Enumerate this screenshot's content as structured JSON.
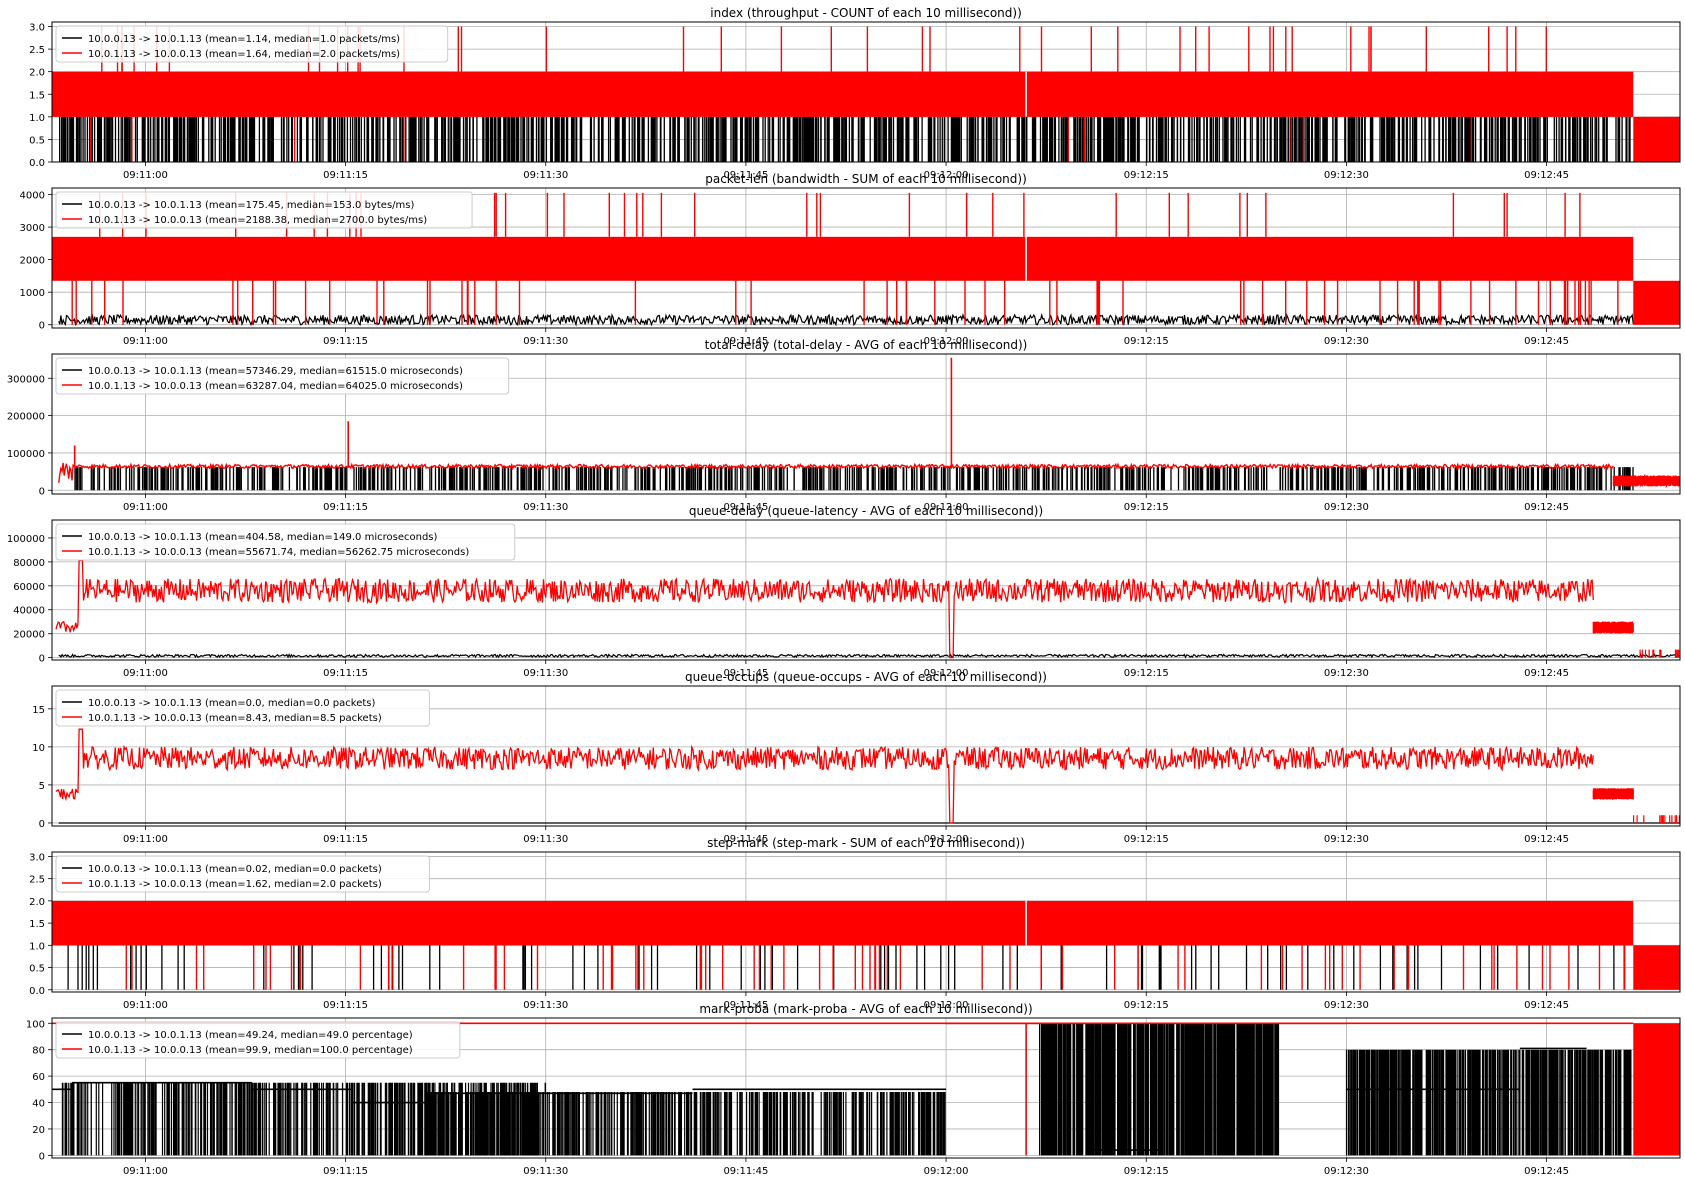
{
  "chart_data": [
    {
      "type": "line",
      "title": "index (throughput - COUNT of each 10 millisecond))",
      "ylim": [
        0,
        3.1
      ],
      "yticks": [
        "0.0",
        "0.5",
        "1.0",
        "1.5",
        "2.0",
        "2.5",
        "3.0"
      ],
      "ytick_values": [
        0,
        0.5,
        1,
        1.5,
        2,
        2.5,
        3
      ],
      "xlim": [
        "09:10:53",
        "09:12:55"
      ],
      "xticks": [
        "09:11:00",
        "09:11:15",
        "09:11:30",
        "09:11:45",
        "09:12:00",
        "09:12:15",
        "09:12:30",
        "09:12:45"
      ],
      "xtick_values": [
        7,
        22,
        37,
        52,
        67,
        82,
        97,
        112
      ],
      "grid": true,
      "legend_position": "upper-left",
      "series": [
        {
          "name": "10.0.0.13 -> 10.0.1.13 (mean=1.14, median=1.0 packets/ms)",
          "color": "#000000",
          "base": 0,
          "top": 1,
          "pattern": "dense-spikes"
        },
        {
          "name": "10.0.1.13 -> 10.0.0.13 (mean=1.64, median=2.0 packets/ms)",
          "color": "#ff0000",
          "band": [
            1,
            2
          ],
          "spike_top": 3,
          "tail": [
            0,
            1
          ]
        }
      ]
    },
    {
      "type": "line",
      "title": "packet-len (bandwidth - SUM of each 10 millisecond))",
      "ylim": [
        -100,
        4200
      ],
      "yticks": [
        "0",
        "1000",
        "2000",
        "3000",
        "4000"
      ],
      "ytick_values": [
        0,
        1000,
        2000,
        3000,
        4000
      ],
      "xlim": [
        "09:10:53",
        "09:12:55"
      ],
      "xticks": [
        "09:11:00",
        "09:11:15",
        "09:11:30",
        "09:11:45",
        "09:12:00",
        "09:12:15",
        "09:12:30",
        "09:12:45"
      ],
      "xtick_values": [
        7,
        22,
        37,
        52,
        67,
        82,
        97,
        112
      ],
      "grid": true,
      "legend_position": "upper-left",
      "series": [
        {
          "name": "10.0.0.13 -> 10.0.1.13 (mean=175.45, median=153.0 bytes/ms)",
          "color": "#000000",
          "base": 0,
          "top": 300,
          "pattern": "noise"
        },
        {
          "name": "10.0.1.13 -> 10.0.0.13 (mean=2188.38, median=2700.0 bytes/ms)",
          "color": "#ff0000",
          "band": [
            1350,
            2700
          ],
          "spike_top": 4050,
          "tail": [
            0,
            1350
          ]
        }
      ]
    },
    {
      "type": "line",
      "title": "total-delay (total-delay - AVG of each 10 millisecond))",
      "ylim": [
        -10000,
        365000
      ],
      "yticks": [
        "0",
        "100000",
        "200000",
        "300000"
      ],
      "ytick_values": [
        0,
        100000,
        200000,
        300000
      ],
      "xlim": [
        "09:10:53",
        "09:12:55"
      ],
      "xticks": [
        "09:11:00",
        "09:11:15",
        "09:11:30",
        "09:11:45",
        "09:12:00",
        "09:12:15",
        "09:12:30",
        "09:12:45"
      ],
      "xtick_values": [
        7,
        22,
        37,
        52,
        67,
        82,
        97,
        112
      ],
      "grid": true,
      "legend_position": "upper-left",
      "series": [
        {
          "name": "10.0.0.13 -> 10.0.1.13 (mean=57346.29, median=61515.0 microseconds)",
          "color": "#000000",
          "level": 62000,
          "pattern": "dense-spikes"
        },
        {
          "name": "10.0.1.13 -> 10.0.0.13 (mean=63287.04, median=64025.0 microseconds)",
          "color": "#ff0000",
          "level": 64000,
          "spikes": [
            [
              1.7,
              120000
            ],
            [
              22.2,
              185000
            ],
            [
              67.4,
              355000
            ]
          ]
        }
      ]
    },
    {
      "type": "line",
      "title": "queue-delay (queue-latency - AVG of each 10 millisecond))",
      "ylim": [
        -2000,
        115000
      ],
      "yticks": [
        "0",
        "20000",
        "40000",
        "60000",
        "80000",
        "100000"
      ],
      "ytick_values": [
        0,
        20000,
        40000,
        60000,
        80000,
        100000
      ],
      "xlim": [
        "09:10:53",
        "09:12:55"
      ],
      "xticks": [
        "09:11:00",
        "09:11:15",
        "09:11:30",
        "09:11:45",
        "09:12:00",
        "09:12:15",
        "09:12:30",
        "09:12:45"
      ],
      "xtick_values": [
        7,
        22,
        37,
        52,
        67,
        82,
        97,
        112
      ],
      "grid": true,
      "legend_position": "upper-left",
      "series": [
        {
          "name": "10.0.0.13 -> 10.0.1.13 (mean=404.58, median=149.0 microseconds)",
          "color": "#000000",
          "level": 1500,
          "pattern": "noise"
        },
        {
          "name": "10.0.1.13 -> 10.0.0.13 (mean=55671.74, median=56262.75 microseconds)",
          "color": "#ff0000",
          "level": 56000,
          "noise": 10000
        }
      ]
    },
    {
      "type": "line",
      "title": "queue-occups (queue-occups - AVG of each 10 millisecond))",
      "ylim": [
        -0.4,
        18
      ],
      "yticks": [
        "0",
        "5",
        "10",
        "15"
      ],
      "ytick_values": [
        0,
        5,
        10,
        15
      ],
      "xlim": [
        "09:10:53",
        "09:12:55"
      ],
      "xticks": [
        "09:11:00",
        "09:11:15",
        "09:11:30",
        "09:11:45",
        "09:12:00",
        "09:12:15",
        "09:12:30",
        "09:12:45"
      ],
      "xtick_values": [
        7,
        22,
        37,
        52,
        67,
        82,
        97,
        112
      ],
      "grid": true,
      "legend_position": "upper-left",
      "series": [
        {
          "name": "10.0.0.13 -> 10.0.1.13 (mean=0.0, median=0.0 packets)",
          "color": "#000000",
          "level": 0,
          "pattern": "flat"
        },
        {
          "name": "10.0.1.13 -> 10.0.0.13 (mean=8.43, median=8.5 packets)",
          "color": "#ff0000",
          "level": 8.5,
          "noise": 1.5
        }
      ]
    },
    {
      "type": "line",
      "title": "step-mark (step-mark - SUM of each 10 millisecond))",
      "ylim": [
        -0.05,
        3.1
      ],
      "yticks": [
        "0.0",
        "0.5",
        "1.0",
        "1.5",
        "2.0",
        "2.5",
        "3.0"
      ],
      "ytick_values": [
        0,
        0.5,
        1,
        1.5,
        2,
        2.5,
        3
      ],
      "xlim": [
        "09:10:53",
        "09:12:55"
      ],
      "xticks": [
        "09:11:00",
        "09:11:15",
        "09:11:30",
        "09:11:45",
        "09:12:00",
        "09:12:15",
        "09:12:30",
        "09:12:45"
      ],
      "xtick_values": [
        7,
        22,
        37,
        52,
        67,
        82,
        97,
        112
      ],
      "grid": true,
      "legend_position": "upper-left",
      "series": [
        {
          "name": "10.0.0.13 -> 10.0.1.13 (mean=0.02, median=0.0 packets)",
          "color": "#000000",
          "base": 0,
          "top": 1,
          "pattern": "sparse-spikes"
        },
        {
          "name": "10.0.1.13 -> 10.0.0.13 (mean=1.62, median=2.0 packets)",
          "color": "#ff0000",
          "band": [
            1,
            2
          ],
          "tail": [
            0,
            1
          ]
        }
      ]
    },
    {
      "type": "line",
      "title": "mark-proba (mark-proba - AVG of each 10 millisecond))",
      "ylim": [
        -2,
        104
      ],
      "yticks": [
        "0",
        "20",
        "40",
        "60",
        "80",
        "100"
      ],
      "ytick_values": [
        0,
        20,
        40,
        60,
        80,
        100
      ],
      "xlim": [
        "09:10:53",
        "09:12:55"
      ],
      "xticks": [
        "09:11:00",
        "09:11:15",
        "09:11:30",
        "09:11:45",
        "09:12:00",
        "09:12:15",
        "09:12:30",
        "09:12:45"
      ],
      "xtick_values": [
        7,
        22,
        37,
        52,
        67,
        82,
        97,
        112
      ],
      "grid": true,
      "legend_position": "upper-left",
      "series": [
        {
          "name": "10.0.0.13 -> 10.0.1.13 (mean=49.24, median=49.0 percentage)",
          "color": "#000000",
          "segments": [
            [
              0,
              1.5,
              50
            ],
            [
              1.5,
              15,
              55
            ],
            [
              15,
              17.5,
              50
            ],
            [
              17.5,
              22.5,
              50
            ],
            [
              22.5,
              28,
              40
            ],
            [
              28,
              37,
              47
            ],
            [
              37,
              48,
              47
            ],
            [
              48,
              67,
              50
            ],
            [
              67,
              74,
              100
            ],
            [
              74,
              78,
              100
            ],
            [
              78,
              83,
              4
            ],
            [
              83,
              97,
              100
            ],
            [
              97,
              110,
              50
            ],
            [
              110,
              115,
              81
            ]
          ]
        },
        {
          "name": "10.0.1.13 -> 10.0.0.13 (mean=99.9, median=100.0 percentage)",
          "color": "#ff0000",
          "level": 100
        }
      ]
    }
  ]
}
